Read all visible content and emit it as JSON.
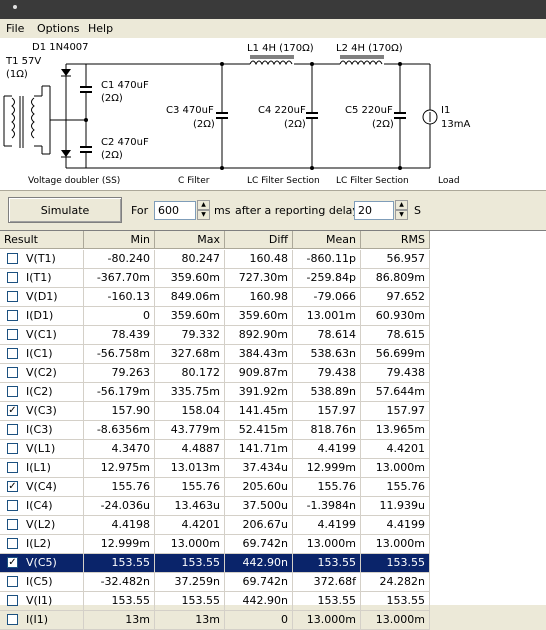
{
  "menu": {
    "file": "File",
    "options": "Options",
    "help": "Help"
  },
  "schematic": {
    "d1_label": "D1 1N4007",
    "t1_label": "T1 57V",
    "t1_res": "(1Ω)",
    "c1_label": "C1 470uF",
    "c1_res": "(2Ω)",
    "c2_label": "C2 470uF",
    "c2_res": "(2Ω)",
    "c3_label": "C3 470uF",
    "c3_res": "(2Ω)",
    "c4_label": "C4 220uF",
    "c4_res": "(2Ω)",
    "c5_label": "C5 220uF",
    "c5_res": "(2Ω)",
    "l1_label": "L1 4H (170Ω)",
    "l2_label": "L2 4H (170Ω)",
    "i1_label": "I1",
    "i1_value": "13mA",
    "section_doubler": "Voltage doubler (SS)",
    "section_cfilter": "C Filter",
    "section_lc1": "LC Filter Section",
    "section_lc2": "LC Filter Section",
    "section_load": "Load"
  },
  "controls": {
    "simulate_label": "Simulate",
    "for_label": "For",
    "for_value": "600",
    "ms_label": "ms",
    "delay_label": "after a reporting delay of",
    "delay_value": "20",
    "s_label": "S"
  },
  "table": {
    "headers": [
      "Result",
      "Min",
      "Max",
      "Diff",
      "Mean",
      "RMS"
    ],
    "rows": [
      {
        "name": "V(T1)",
        "checked": false,
        "min": "-80.240",
        "max": "80.247",
        "diff": "160.48",
        "mean": "-860.11p",
        "rms": "56.957"
      },
      {
        "name": "I(T1)",
        "checked": false,
        "min": "-367.70m",
        "max": "359.60m",
        "diff": "727.30m",
        "mean": "-259.84p",
        "rms": "86.809m"
      },
      {
        "name": "V(D1)",
        "checked": false,
        "min": "-160.13",
        "max": "849.06m",
        "diff": "160.98",
        "mean": "-79.066",
        "rms": "97.652"
      },
      {
        "name": "I(D1)",
        "checked": false,
        "min": "0",
        "max": "359.60m",
        "diff": "359.60m",
        "mean": "13.001m",
        "rms": "60.930m"
      },
      {
        "name": "V(C1)",
        "checked": false,
        "min": "78.439",
        "max": "79.332",
        "diff": "892.90m",
        "mean": "78.614",
        "rms": "78.615"
      },
      {
        "name": "I(C1)",
        "checked": false,
        "min": "-56.758m",
        "max": "327.68m",
        "diff": "384.43m",
        "mean": "538.63n",
        "rms": "56.699m"
      },
      {
        "name": "V(C2)",
        "checked": false,
        "min": "79.263",
        "max": "80.172",
        "diff": "909.87m",
        "mean": "79.438",
        "rms": "79.438"
      },
      {
        "name": "I(C2)",
        "checked": false,
        "min": "-56.179m",
        "max": "335.75m",
        "diff": "391.92m",
        "mean": "538.89n",
        "rms": "57.644m"
      },
      {
        "name": "V(C3)",
        "checked": true,
        "min": "157.90",
        "max": "158.04",
        "diff": "141.45m",
        "mean": "157.97",
        "rms": "157.97"
      },
      {
        "name": "I(C3)",
        "checked": false,
        "min": "-8.6356m",
        "max": "43.779m",
        "diff": "52.415m",
        "mean": "818.76n",
        "rms": "13.965m"
      },
      {
        "name": "V(L1)",
        "checked": false,
        "min": "4.3470",
        "max": "4.4887",
        "diff": "141.71m",
        "mean": "4.4199",
        "rms": "4.4201"
      },
      {
        "name": "I(L1)",
        "checked": false,
        "min": "12.975m",
        "max": "13.013m",
        "diff": "37.434u",
        "mean": "12.999m",
        "rms": "13.000m"
      },
      {
        "name": "V(C4)",
        "checked": true,
        "min": "155.76",
        "max": "155.76",
        "diff": "205.60u",
        "mean": "155.76",
        "rms": "155.76"
      },
      {
        "name": "I(C4)",
        "checked": false,
        "min": "-24.036u",
        "max": "13.463u",
        "diff": "37.500u",
        "mean": "-1.3984n",
        "rms": "11.939u"
      },
      {
        "name": "V(L2)",
        "checked": false,
        "min": "4.4198",
        "max": "4.4201",
        "diff": "206.67u",
        "mean": "4.4199",
        "rms": "4.4199"
      },
      {
        "name": "I(L2)",
        "checked": false,
        "min": "12.999m",
        "max": "13.000m",
        "diff": "69.742n",
        "mean": "13.000m",
        "rms": "13.000m"
      },
      {
        "name": "V(C5)",
        "checked": true,
        "min": "153.55",
        "max": "153.55",
        "diff": "442.90n",
        "mean": "153.55",
        "rms": "153.55",
        "selected": true
      },
      {
        "name": "I(C5)",
        "checked": false,
        "min": "-32.482n",
        "max": "37.259n",
        "diff": "69.742n",
        "mean": "372.68f",
        "rms": "24.282n"
      },
      {
        "name": "V(I1)",
        "checked": false,
        "min": "153.55",
        "max": "153.55",
        "diff": "442.90n",
        "mean": "153.55",
        "rms": "153.55"
      },
      {
        "name": "I(I1)",
        "checked": false,
        "min": "13m",
        "max": "13m",
        "diff": "0",
        "mean": "13.000m",
        "rms": "13.000m"
      }
    ]
  }
}
